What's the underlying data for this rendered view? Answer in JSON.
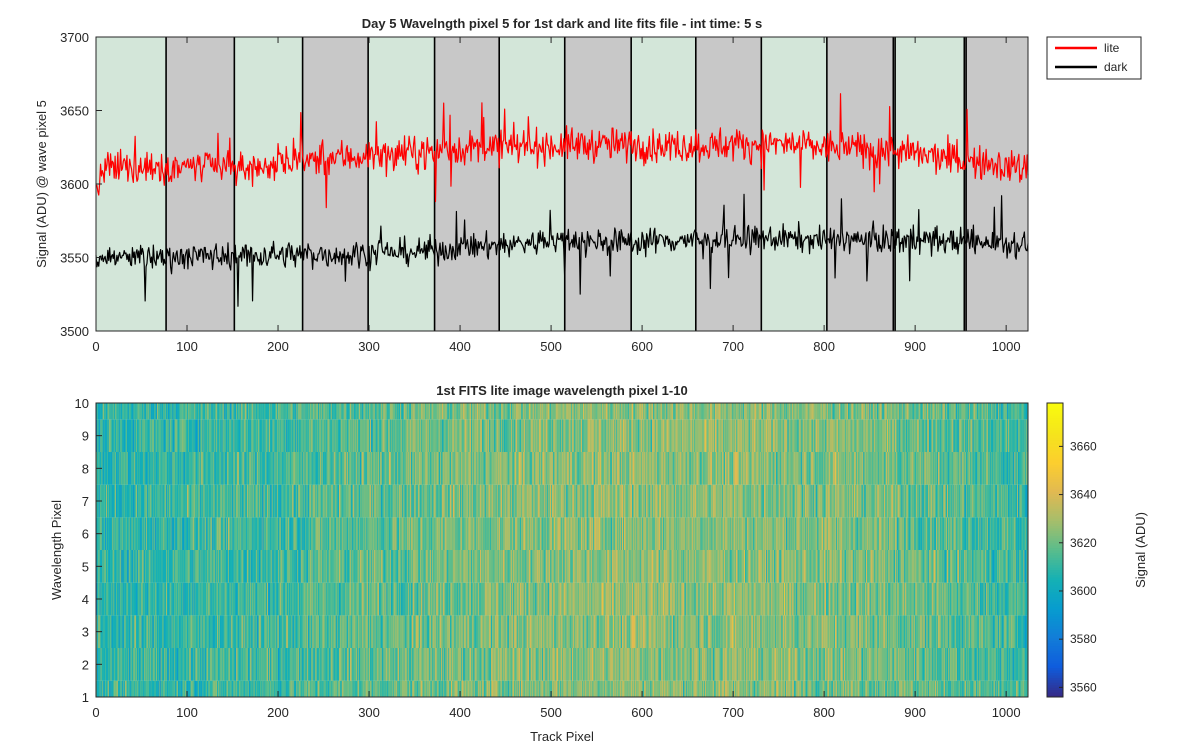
{
  "figure": {
    "background": "#ffffff"
  },
  "chart_data": [
    {
      "type": "line",
      "title": "Day 5 Wavelngth pixel 5 for 1st dark and lite fits file - int time: 5 s",
      "xlabel": "",
      "ylabel": "Signal (ADU) @ wave pixel 5",
      "xlim": [
        0,
        1024
      ],
      "ylim": [
        3500,
        3700
      ],
      "xticks": [
        0,
        100,
        200,
        300,
        400,
        500,
        600,
        700,
        800,
        900,
        1000
      ],
      "yticks": [
        3500,
        3550,
        3600,
        3650,
        3700
      ],
      "grid": false,
      "legend_position": "outside-top-right",
      "background_bands": {
        "boundaries": [
          0,
          77,
          152,
          227,
          299,
          372,
          443,
          515,
          588,
          659,
          731,
          803,
          876,
          878,
          954,
          956,
          1024
        ],
        "colors": [
          "#d3e6d9",
          "#c8c8c8",
          "#d3e6d9",
          "#c8c8c8",
          "#d3e6d9",
          "#c8c8c8",
          "#d3e6d9",
          "#c8c8c8",
          "#d3e6d9",
          "#c8c8c8",
          "#d3e6d9",
          "#c8c8c8",
          "#d3e6d9",
          "#d3e6d9",
          "#c8c8c8",
          "#c8c8c8"
        ]
      },
      "series": [
        {
          "name": "lite",
          "color": "#ff0000",
          "trend_x": [
            0,
            10,
            50,
            100,
            150,
            200,
            250,
            300,
            350,
            400,
            450,
            500,
            550,
            600,
            650,
            700,
            750,
            800,
            850,
            900,
            950,
            1000,
            1024
          ],
          "trend_y": [
            3595,
            3610,
            3612,
            3612,
            3610,
            3613,
            3618,
            3619,
            3621,
            3624,
            3625,
            3626,
            3627,
            3626,
            3626,
            3627,
            3627,
            3625,
            3624,
            3620,
            3616,
            3612,
            3610
          ],
          "noise_amplitude": 9
        },
        {
          "name": "dark",
          "color": "#000000",
          "trend_x": [
            0,
            50,
            100,
            150,
            200,
            250,
            300,
            350,
            400,
            450,
            500,
            550,
            600,
            650,
            700,
            750,
            800,
            850,
            900,
            950,
            1000,
            1024
          ],
          "trend_y": [
            3550,
            3550,
            3551,
            3551,
            3552,
            3552,
            3553,
            3554,
            3556,
            3559,
            3561,
            3561,
            3561,
            3562,
            3562,
            3563,
            3562,
            3562,
            3562,
            3561,
            3560,
            3559
          ],
          "noise_amplitude": 7
        }
      ]
    },
    {
      "type": "heatmap",
      "title": "1st FITS lite image wavelength pixel 1-10",
      "xlabel": "Track Pixel",
      "ylabel": "Wavelength Pixel",
      "xlim": [
        0,
        1024
      ],
      "ylim": [
        1,
        10
      ],
      "xticks": [
        0,
        100,
        200,
        300,
        400,
        500,
        600,
        700,
        800,
        900,
        1000
      ],
      "yticks": [
        1,
        2,
        3,
        4,
        5,
        6,
        7,
        8,
        9,
        10
      ],
      "rows": 10,
      "columns": 1024,
      "colorbar": {
        "label": "Signal (ADU)",
        "range": [
          3556,
          3678
        ],
        "ticks": [
          3560,
          3580,
          3600,
          3620,
          3640,
          3660
        ],
        "colormap": "parula"
      },
      "trend_x": [
        0,
        100,
        200,
        300,
        400,
        500,
        600,
        700,
        800,
        900,
        1000,
        1024
      ],
      "trend_y": [
        3608,
        3611,
        3613,
        3618,
        3622,
        3625,
        3626,
        3625,
        3624,
        3620,
        3613,
        3610
      ]
    }
  ]
}
